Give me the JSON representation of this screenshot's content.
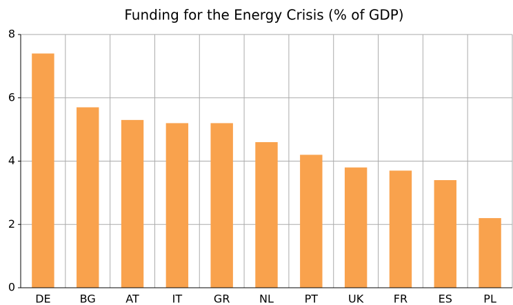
{
  "chart_data": {
    "type": "bar",
    "title": "Funding for the Energy Crisis (% of GDP)",
    "categories": [
      "DE",
      "BG",
      "AT",
      "IT",
      "GR",
      "NL",
      "PT",
      "UK",
      "FR",
      "ES",
      "PL"
    ],
    "values": [
      7.4,
      5.7,
      5.3,
      5.2,
      5.2,
      4.6,
      4.2,
      3.8,
      3.7,
      3.4,
      2.2
    ],
    "color": "#f9a24d",
    "ylim": [
      0,
      8
    ],
    "yticks": [
      0,
      2,
      4,
      6,
      8
    ],
    "grid": true
  }
}
